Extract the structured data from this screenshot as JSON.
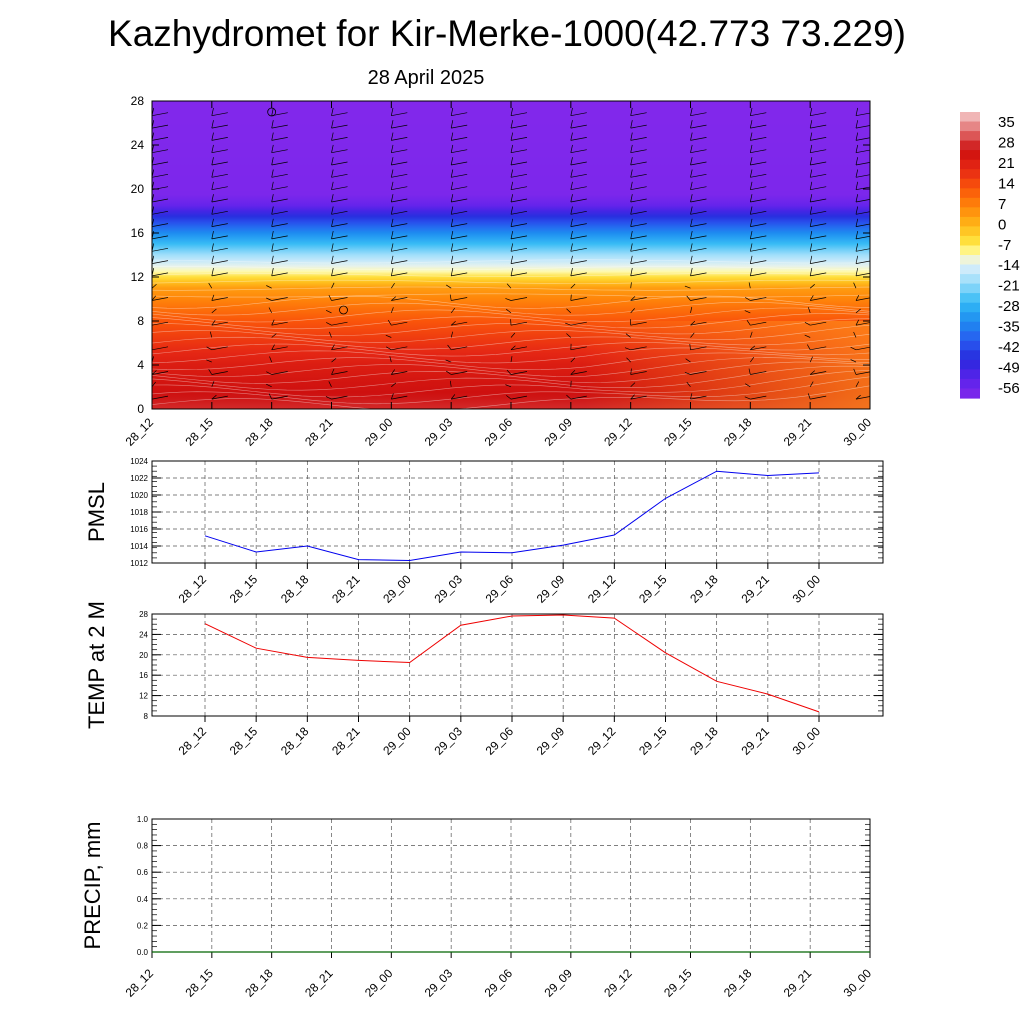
{
  "header": {
    "title": "Kazhydromet for Kir-Merke-1000(42.773 73.229)",
    "subtitle": "28 April 2025"
  },
  "colors": {
    "pmsl_line": "#0000ee",
    "temp_line": "#ee0000",
    "precip_line": "#006400",
    "grid": "#555555",
    "wind_barb": "#000000",
    "isoline": "#ffffff"
  },
  "chart_data": [
    {
      "type": "heatmap",
      "name": "cross-section",
      "description_values": "temperature field with wind barbs",
      "x_ticks": [
        "28_12",
        "28_15",
        "28_18",
        "28_21",
        "29_00",
        "29_03",
        "29_06",
        "29_09",
        "29_12",
        "29_15",
        "29_18",
        "29_21",
        "30_00"
      ],
      "y_ticks": [
        "0",
        "4",
        "8",
        "12",
        "16",
        "20",
        "24",
        "28"
      ],
      "ylim": [
        0,
        28
      ],
      "colorbar": {
        "labels": [
          "35",
          "28",
          "21",
          "14",
          "7",
          "0",
          "-7",
          "-14",
          "-21",
          "-28",
          "-35",
          "-42",
          "-49",
          "-56"
        ],
        "range": [
          -63,
          42
        ]
      },
      "temperature_profile": [
        {
          "y": 0,
          "t": 30
        },
        {
          "y": 4,
          "t": 24
        },
        {
          "y": 8,
          "t": 14
        },
        {
          "y": 11,
          "t": 4
        },
        {
          "y": 12.5,
          "t": -10
        },
        {
          "y": 14,
          "t": -20
        },
        {
          "y": 16,
          "t": -35
        },
        {
          "y": 17.5,
          "t": -48
        },
        {
          "y": 18.5,
          "t": -58
        },
        {
          "y": 19.5,
          "t": -62
        },
        {
          "y": 28,
          "t": -63
        }
      ]
    },
    {
      "type": "line",
      "name": "pmsl",
      "ylabel": "PMSL",
      "ylim": [
        1012,
        1024
      ],
      "y_ticks": [
        "1012",
        "1014",
        "1016",
        "1018",
        "1020",
        "1022",
        "1024"
      ],
      "categories": [
        "28_12",
        "28_15",
        "28_18",
        "28_21",
        "29_00",
        "29_03",
        "29_06",
        "29_09",
        "29_12",
        "29_15",
        "29_18",
        "29_21",
        "30_00"
      ],
      "values": [
        1015.2,
        1013.3,
        1014.0,
        1012.4,
        1012.3,
        1013.3,
        1013.2,
        1014.1,
        1015.3,
        1019.6,
        1022.8,
        1022.3,
        1022.6
      ]
    },
    {
      "type": "line",
      "name": "temp",
      "ylabel": "TEMP at 2 M",
      "ylim": [
        8,
        28
      ],
      "y_ticks": [
        "8",
        "12",
        "16",
        "20",
        "24",
        "28"
      ],
      "categories": [
        "28_12",
        "28_15",
        "28_18",
        "28_21",
        "29_00",
        "29_03",
        "29_06",
        "29_09",
        "29_12",
        "29_15",
        "29_18",
        "29_21",
        "30_00"
      ],
      "values": [
        26.1,
        21.3,
        19.5,
        18.9,
        18.5,
        25.8,
        27.6,
        27.8,
        27.2,
        20.4,
        14.8,
        12.3,
        8.8
      ]
    },
    {
      "type": "line",
      "name": "precip",
      "ylabel": "PRECIP, mm",
      "ylim": [
        0,
        1
      ],
      "y_ticks": [
        "0.0",
        "0.2",
        "0.4",
        "0.6",
        "0.8",
        "1.0"
      ],
      "x_ticks": [
        "28_12",
        "28_15",
        "28_18",
        "28_21",
        "29_00",
        "29_03",
        "29_06",
        "29_09",
        "29_12",
        "29_15",
        "29_18",
        "29_21",
        "30_00"
      ],
      "values": [
        0,
        0,
        0,
        0,
        0,
        0,
        0,
        0,
        0,
        0,
        0,
        0,
        0
      ]
    }
  ]
}
